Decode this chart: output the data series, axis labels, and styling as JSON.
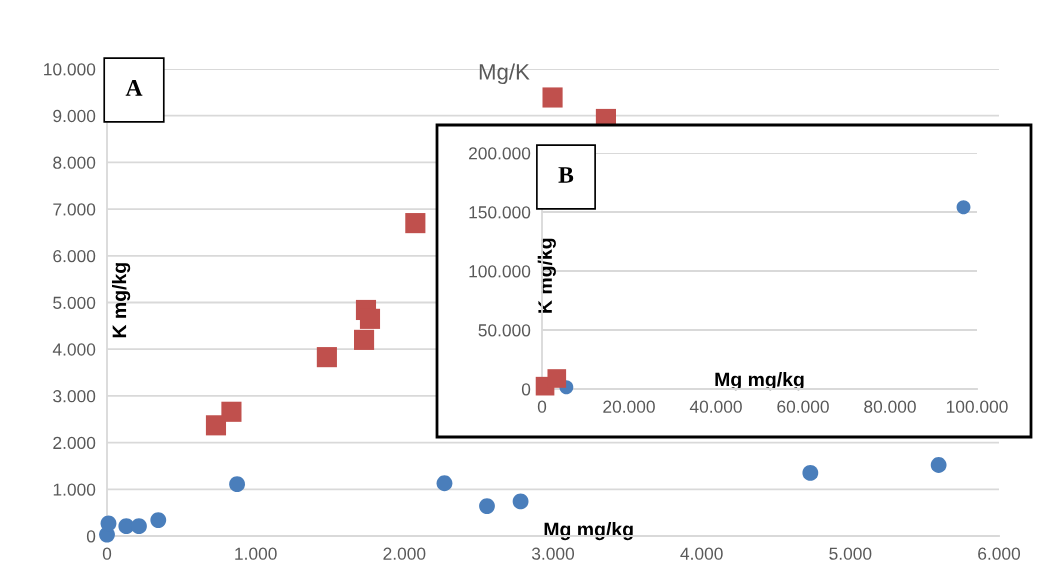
{
  "chart_data": [
    {
      "type": "scatter",
      "title": "Mg/K",
      "xlabel": "Mg mg/kg",
      "ylabel": "K mg/kg",
      "annotations": [
        "A"
      ],
      "xlim": [
        0,
        6000
      ],
      "xticks": [
        0,
        {
          "value": 1000,
          "label": "1.000"
        },
        {
          "value": 2000,
          "label": "2.000"
        },
        {
          "value": 3000,
          "label": "3.000"
        },
        {
          "value": 4000,
          "label": "4.000"
        },
        {
          "value": 5000,
          "label": "5.000"
        },
        {
          "value": 6000,
          "label": "6.000"
        }
      ],
      "ylim": [
        0,
        10000
      ],
      "yticks": [
        0,
        {
          "value": 1000,
          "label": "1.000"
        },
        {
          "value": 2000,
          "label": "2.000"
        },
        {
          "value": 3000,
          "label": "3.000"
        },
        {
          "value": 4000,
          "label": "4.000"
        },
        {
          "value": 5000,
          "label": "5.000"
        },
        {
          "value": 6000,
          "label": "6.000"
        },
        {
          "value": 7000,
          "label": "7.000"
        },
        {
          "value": 8000,
          "label": "8.000"
        },
        {
          "value": 9000,
          "label": "9.000"
        },
        {
          "value": 10000,
          "label": "10.000"
        }
      ],
      "grid": "y",
      "legend": false,
      "series": [
        {
          "color": "#4a7ebb",
          "marker": "circle",
          "x": [
            0,
            10,
            130,
            215,
            345,
            875,
            2270,
            2556,
            2782,
            4731,
            5594
          ],
          "values": [
            30,
            270,
            210,
            210,
            340,
            1110,
            1130,
            640,
            740,
            1350,
            1520
          ]
        },
        {
          "color": "#c0504d",
          "marker": "square",
          "x": [
            733,
            837,
            1479,
            1689,
            1729,
            1742,
            1769,
            2074,
            2997,
            3356
          ],
          "values": [
            2370,
            2660,
            3830,
            null,
            4200,
            4840,
            4650,
            6700,
            9390,
            8930
          ]
        }
      ]
    },
    {
      "type": "scatter",
      "xlabel": "Mg mg/kg",
      "ylabel": "K mg/kg",
      "annotations": [
        "B"
      ],
      "xlim": [
        0,
        100000
      ],
      "xticks": [
        0,
        {
          "value": 20000,
          "label": "20.000"
        },
        {
          "value": 40000,
          "label": "40.000"
        },
        {
          "value": 60000,
          "label": "60.000"
        },
        {
          "value": 80000,
          "label": "80.000"
        },
        {
          "value": 100000,
          "label": "100.000"
        }
      ],
      "ylim": [
        0,
        200000
      ],
      "yticks": [
        0,
        {
          "value": 50000,
          "label": "50.000"
        },
        {
          "value": 100000,
          "label": "100.000"
        },
        {
          "value": 150000,
          "label": "150.000"
        },
        {
          "value": 200000,
          "label": "200.000"
        }
      ],
      "grid": "y",
      "legend": false,
      "series": [
        {
          "color": "#4a7ebb",
          "marker": "circle",
          "x": [
            5600,
            96900
          ],
          "values": [
            1500,
            154000
          ]
        },
        {
          "color": "#c0504d",
          "marker": "square",
          "x": [
            700,
            3400
          ],
          "values": [
            2400,
            8900
          ]
        }
      ]
    }
  ]
}
